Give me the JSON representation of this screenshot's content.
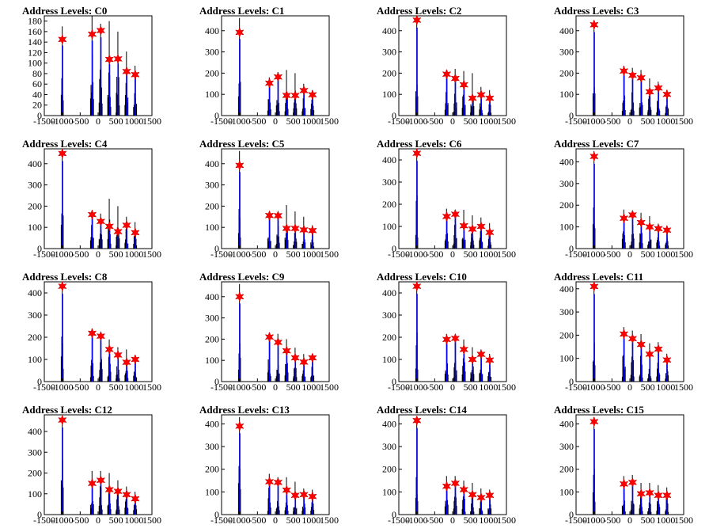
{
  "chart_data": {
    "type": "histogram",
    "xlim": [
      -1500,
      1500
    ],
    "x_ticks": [
      -1500,
      -1000,
      -500,
      0,
      500,
      1000,
      1500
    ],
    "x_tick_labels": [
      "-1500",
      "-1000",
      "-500",
      "0",
      "500",
      "1000",
      "1500"
    ],
    "peak_positions": [
      -1000,
      -170,
      70,
      310,
      550,
      790,
      1030
    ],
    "colors": {
      "histogram": "#000000",
      "fit": "#0000ff",
      "marker": "#ff0000"
    },
    "panels": [
      {
        "title": "Address Levels: C0",
        "ylim": [
          0,
          190
        ],
        "y_ticks": [
          0,
          20,
          40,
          60,
          80,
          100,
          120,
          140,
          160,
          180
        ],
        "y_tick_labels": [
          "0",
          "20",
          "40",
          "60",
          "80",
          "100",
          "120",
          "140",
          "160",
          "180"
        ],
        "bar_peaks": [
          170,
          190,
          175,
          180,
          160,
          122,
          95
        ],
        "markers": [
          145,
          155,
          162,
          107,
          108,
          84,
          78
        ]
      },
      {
        "title": "Address Levels: C1",
        "ylim": [
          0,
          470
        ],
        "y_ticks": [
          0,
          100,
          200,
          300,
          400
        ],
        "y_tick_labels": [
          "0",
          "100",
          "200",
          "300",
          "400"
        ],
        "bar_peaks": [
          460,
          180,
          205,
          215,
          200,
          150,
          120
        ],
        "markers": [
          392,
          153,
          182,
          95,
          95,
          118,
          98
        ]
      },
      {
        "title": "Address Levels: C2",
        "ylim": [
          0,
          470
        ],
        "y_ticks": [
          0,
          100,
          200,
          300,
          400
        ],
        "y_tick_labels": [
          "0",
          "100",
          "200",
          "300",
          "400"
        ],
        "bar_peaks": [
          460,
          215,
          220,
          210,
          200,
          135,
          120
        ],
        "markers": [
          450,
          195,
          175,
          145,
          82,
          98,
          82
        ]
      },
      {
        "title": "Address Levels: C3",
        "ylim": [
          0,
          470
        ],
        "y_ticks": [
          0,
          100,
          200,
          300,
          400
        ],
        "y_tick_labels": [
          "0",
          "100",
          "200",
          "300",
          "400"
        ],
        "bar_peaks": [
          450,
          235,
          225,
          215,
          175,
          160,
          120
        ],
        "markers": [
          428,
          210,
          190,
          178,
          112,
          130,
          100
        ]
      },
      {
        "title": "Address Levels: C4",
        "ylim": [
          0,
          470
        ],
        "y_ticks": [
          0,
          100,
          200,
          300,
          400
        ],
        "y_tick_labels": [
          "0",
          "100",
          "200",
          "300",
          "400"
        ],
        "bar_peaks": [
          460,
          180,
          165,
          235,
          200,
          150,
          125
        ],
        "markers": [
          448,
          160,
          128,
          105,
          80,
          110,
          75
        ]
      },
      {
        "title": "Address Levels: C5",
        "ylim": [
          0,
          470
        ],
        "y_ticks": [
          0,
          100,
          200,
          300,
          400
        ],
        "y_tick_labels": [
          "0",
          "100",
          "200",
          "300",
          "400"
        ],
        "bar_peaks": [
          460,
          170,
          170,
          205,
          175,
          150,
          110
        ],
        "markers": [
          392,
          156,
          155,
          95,
          95,
          88,
          85
        ]
      },
      {
        "title": "Address Levels: C6",
        "ylim": [
          0,
          450
        ],
        "y_ticks": [
          0,
          100,
          200,
          300,
          400
        ],
        "y_tick_labels": [
          "0",
          "100",
          "200",
          "300",
          "400"
        ],
        "bar_peaks": [
          440,
          180,
          175,
          175,
          150,
          140,
          115
        ],
        "markers": [
          430,
          145,
          155,
          103,
          88,
          100,
          73
        ]
      },
      {
        "title": "Address Levels: C7",
        "ylim": [
          0,
          460
        ],
        "y_ticks": [
          0,
          100,
          200,
          300,
          400
        ],
        "y_tick_labels": [
          "0",
          "100",
          "200",
          "300",
          "400"
        ],
        "bar_peaks": [
          450,
          180,
          175,
          165,
          150,
          115,
          105
        ],
        "markers": [
          425,
          140,
          155,
          120,
          100,
          92,
          85
        ]
      },
      {
        "title": "Address Levels: C8",
        "ylim": [
          0,
          450
        ],
        "y_ticks": [
          0,
          100,
          200,
          300,
          400
        ],
        "y_tick_labels": [
          "0",
          "100",
          "200",
          "300",
          "400"
        ],
        "bar_peaks": [
          440,
          240,
          220,
          190,
          155,
          145,
          120
        ],
        "markers": [
          430,
          218,
          205,
          145,
          120,
          87,
          100
        ]
      },
      {
        "title": "Address Levels: C9",
        "ylim": [
          0,
          470
        ],
        "y_ticks": [
          0,
          100,
          200,
          300,
          400
        ],
        "y_tick_labels": [
          "0",
          "100",
          "200",
          "300",
          "400"
        ],
        "bar_peaks": [
          460,
          230,
          225,
          200,
          160,
          130,
          125
        ],
        "markers": [
          400,
          210,
          185,
          145,
          112,
          92,
          112
        ]
      },
      {
        "title": "Address Levels: C10",
        "ylim": [
          0,
          450
        ],
        "y_ticks": [
          0,
          100,
          200,
          300,
          400
        ],
        "y_tick_labels": [
          "0",
          "100",
          "200",
          "300",
          "400"
        ],
        "bar_peaks": [
          440,
          215,
          210,
          190,
          155,
          145,
          125
        ],
        "markers": [
          430,
          190,
          195,
          145,
          100,
          123,
          97
        ]
      },
      {
        "title": "Address Levels: C11",
        "ylim": [
          0,
          430
        ],
        "y_ticks": [
          0,
          100,
          200,
          300,
          400
        ],
        "y_tick_labels": [
          "0",
          "100",
          "200",
          "300",
          "400"
        ],
        "bar_peaks": [
          420,
          235,
          220,
          205,
          165,
          170,
          120
        ],
        "markers": [
          410,
          205,
          185,
          160,
          118,
          140,
          93
        ]
      },
      {
        "title": "Address Levels: C12",
        "ylim": [
          0,
          480
        ],
        "y_ticks": [
          0,
          100,
          200,
          300,
          400
        ],
        "y_tick_labels": [
          "0",
          "100",
          "200",
          "300",
          "400"
        ],
        "bar_peaks": [
          470,
          210,
          210,
          200,
          165,
          135,
          110
        ],
        "markers": [
          455,
          150,
          165,
          120,
          112,
          96,
          76
        ]
      },
      {
        "title": "Address Levels: C13",
        "ylim": [
          0,
          440
        ],
        "y_ticks": [
          0,
          100,
          200,
          300,
          400
        ],
        "y_tick_labels": [
          "0",
          "100",
          "200",
          "300",
          "400"
        ],
        "bar_peaks": [
          430,
          180,
          165,
          165,
          145,
          115,
          110
        ],
        "markers": [
          390,
          145,
          142,
          108,
          85,
          88,
          80
        ]
      },
      {
        "title": "Address Levels: C14",
        "ylim": [
          0,
          440
        ],
        "y_ticks": [
          0,
          100,
          200,
          300,
          400
        ],
        "y_tick_labels": [
          "0",
          "100",
          "200",
          "300",
          "400"
        ],
        "bar_peaks": [
          430,
          170,
          170,
          150,
          140,
          115,
          110
        ],
        "markers": [
          415,
          125,
          138,
          110,
          88,
          75,
          85
        ]
      },
      {
        "title": "Address Levels: C15",
        "ylim": [
          0,
          440
        ],
        "y_ticks": [
          0,
          100,
          200,
          300,
          400
        ],
        "y_tick_labels": [
          "0",
          "100",
          "200",
          "300",
          "400"
        ],
        "bar_peaks": [
          430,
          170,
          175,
          140,
          140,
          130,
          120
        ],
        "markers": [
          410,
          135,
          142,
          92,
          96,
          85,
          85
        ]
      }
    ]
  }
}
